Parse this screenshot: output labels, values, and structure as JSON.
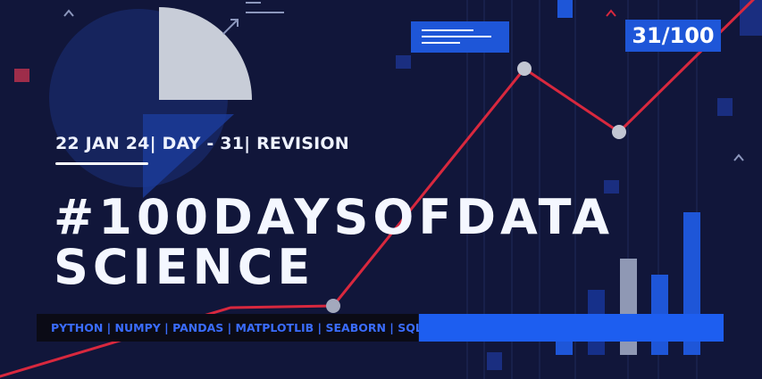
{
  "banner": {
    "date_line": "22 JAN 24| DAY - 31| REVISION",
    "title_line1": "#100DAYSOFDATA",
    "title_line2": "SCIENCE",
    "counter": "31/100",
    "skills": "PYTHON | NUMPY | PANDAS | MATPLOTLIB | SEABORN | SQL |"
  },
  "colors": {
    "background": "#11163a",
    "accent_blue": "#1e56d8",
    "trend_line": "#d8283e",
    "skills_text": "#3a6cff"
  },
  "icons": [
    "pie-chart-icon",
    "trend-arrow-icon",
    "chevron-up-icon",
    "line-chart-icon",
    "bar-chart-icon"
  ]
}
